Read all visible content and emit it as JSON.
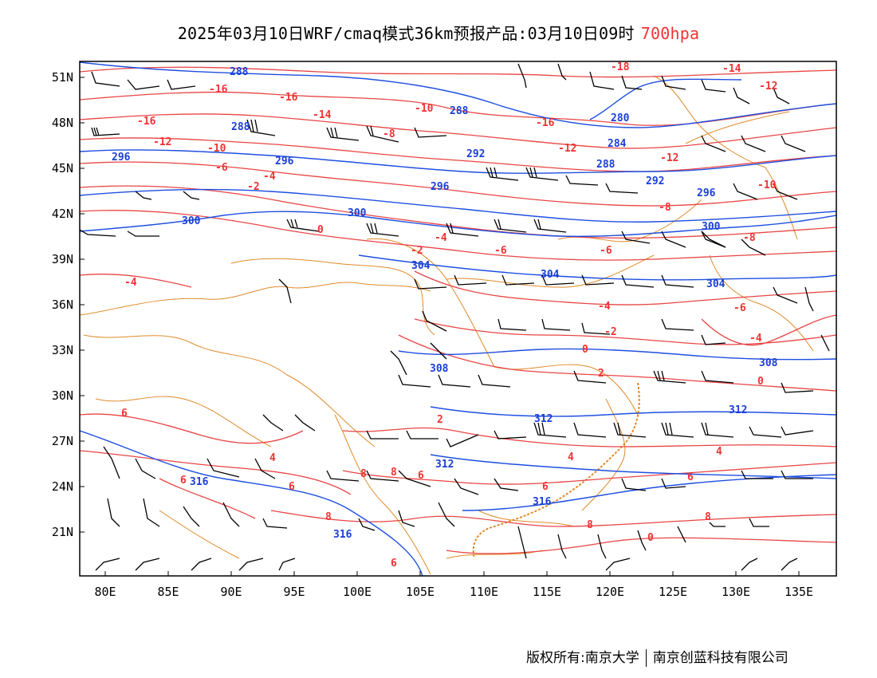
{
  "title": {
    "main": "2025年03月10日WRF/cmaq模式36km预报产品:03月10日09时",
    "level": "700hpa",
    "level_color": "#e33333"
  },
  "footer": {
    "left": "版权所有:南京大学",
    "right": "南京创蓝科技有限公司"
  },
  "axes": {
    "lon_labels": [
      "80E",
      "85E",
      "90E",
      "95E",
      "100E",
      "105E",
      "110E",
      "115E",
      "120E",
      "125E",
      "130E",
      "135E"
    ],
    "lat_labels": [
      "51N",
      "48N",
      "45N",
      "42N",
      "39N",
      "36N",
      "33N",
      "30N",
      "27N",
      "24N",
      "21N"
    ]
  },
  "colors": {
    "temperature_contour": "#e84545",
    "height_contour": "#1f4fe0",
    "border": "#e08a2a",
    "wind_barb": "#000000"
  },
  "contour_labels": {
    "temperature": [
      "-16",
      "-16",
      "-16",
      "-14",
      "-12",
      "-10",
      "-10",
      "-8",
      "-6",
      "-4",
      "-4",
      "-2",
      "-2",
      "0",
      "0",
      "-6",
      "-4",
      "-4",
      "-2",
      "2",
      "-12",
      "-12",
      "-8",
      "-6",
      "-8",
      "-10",
      "-12",
      "-14",
      "-18",
      "-16",
      "-6",
      "-4",
      "2",
      "0",
      "6",
      "4",
      "6",
      "6",
      "8",
      "8",
      "6",
      "8",
      "6",
      "6",
      "8",
      "8",
      "0",
      "4",
      "4",
      "6"
    ],
    "height": [
      "288",
      "288",
      "296",
      "296",
      "288",
      "292",
      "296",
      "300",
      "300",
      "304",
      "304",
      "304",
      "308",
      "308",
      "312",
      "312",
      "312",
      "316",
      "316",
      "316",
      "284",
      "280",
      "288",
      "292",
      "296",
      "300"
    ]
  },
  "legend": {
    "temperature_meaning": "",
    "height_meaning": ""
  }
}
